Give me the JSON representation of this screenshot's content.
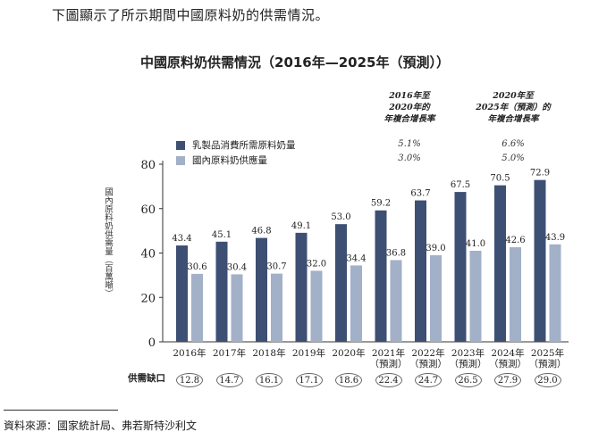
{
  "intro_text": "下圖顯示了所示期間中國原料奶的供需情況。",
  "colors": {
    "demand": "#3d4f73",
    "supply": "#a2b0c8",
    "axis": "#333333"
  },
  "cagr": {
    "headers": [
      "2016年至\n2020年的\n年複合增長率",
      "2020年至\n2025年（預測）的\n年複合增長率"
    ],
    "demand": [
      "5.1%",
      "6.6%"
    ],
    "supply": [
      "3.0%",
      "5.0%"
    ]
  },
  "gap_label": "供需缺口",
  "source": "資料來源：國家統計局、弗若斯特沙利文",
  "chart_data": {
    "type": "bar",
    "title": "中國原料奶供需情況（2016年—2025年（預測））",
    "ylabel": "國內原料奶供需量（百萬噸）",
    "xlabel": "",
    "ylim": [
      0,
      80
    ],
    "yticks": [
      0,
      20,
      40,
      60,
      80
    ],
    "grid": false,
    "legend": "top-left",
    "categories": [
      "2016年",
      "2017年",
      "2018年",
      "2019年",
      "2020年",
      "2021年\n（預測）",
      "2022年\n（預測）",
      "2023年\n（預測）",
      "2024年\n（預測）",
      "2025年\n（預測）"
    ],
    "series": [
      {
        "name": "乳製品消費所需原料奶量",
        "values": [
          43.4,
          45.1,
          46.8,
          49.1,
          53.0,
          59.2,
          63.7,
          67.5,
          70.5,
          72.9
        ]
      },
      {
        "name": "國內原料奶供應量",
        "values": [
          30.6,
          30.4,
          30.7,
          32.0,
          34.4,
          36.8,
          39.0,
          41.0,
          42.6,
          43.9
        ]
      }
    ],
    "gap": [
      12.8,
      14.7,
      16.1,
      17.1,
      18.6,
      22.4,
      24.7,
      26.5,
      27.9,
      29.0
    ]
  }
}
